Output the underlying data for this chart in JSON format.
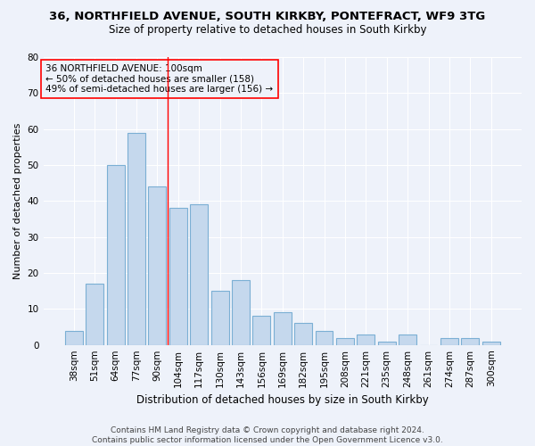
{
  "title1": "36, NORTHFIELD AVENUE, SOUTH KIRKBY, PONTEFRACT, WF9 3TG",
  "title2": "Size of property relative to detached houses in South Kirkby",
  "xlabel": "Distribution of detached houses by size in South Kirkby",
  "ylabel": "Number of detached properties",
  "categories": [
    "38sqm",
    "51sqm",
    "64sqm",
    "77sqm",
    "90sqm",
    "104sqm",
    "117sqm",
    "130sqm",
    "143sqm",
    "156sqm",
    "169sqm",
    "182sqm",
    "195sqm",
    "208sqm",
    "221sqm",
    "235sqm",
    "248sqm",
    "261sqm",
    "274sqm",
    "287sqm",
    "300sqm"
  ],
  "values": [
    4,
    17,
    50,
    59,
    44,
    38,
    39,
    15,
    18,
    8,
    9,
    6,
    4,
    2,
    3,
    1,
    3,
    0,
    2,
    2,
    1
  ],
  "bar_color": "#c5d8ed",
  "bar_edge_color": "#7bafd4",
  "ylim": [
    0,
    80
  ],
  "yticks": [
    0,
    10,
    20,
    30,
    40,
    50,
    60,
    70,
    80
  ],
  "vline_x": 4.5,
  "annotation_line1": "36 NORTHFIELD AVENUE: 100sqm",
  "annotation_line2": "← 50% of detached houses are smaller (158)",
  "annotation_line3": "49% of semi-detached houses are larger (156) →",
  "footer1": "Contains HM Land Registry data © Crown copyright and database right 2024.",
  "footer2": "Contains public sector information licensed under the Open Government Licence v3.0.",
  "background_color": "#eef2fa",
  "grid_color": "#ffffff",
  "title1_fontsize": 9.5,
  "title2_fontsize": 8.5,
  "xlabel_fontsize": 8.5,
  "ylabel_fontsize": 8,
  "tick_fontsize": 7.5,
  "annotation_fontsize": 7.5,
  "footer_fontsize": 6.5
}
